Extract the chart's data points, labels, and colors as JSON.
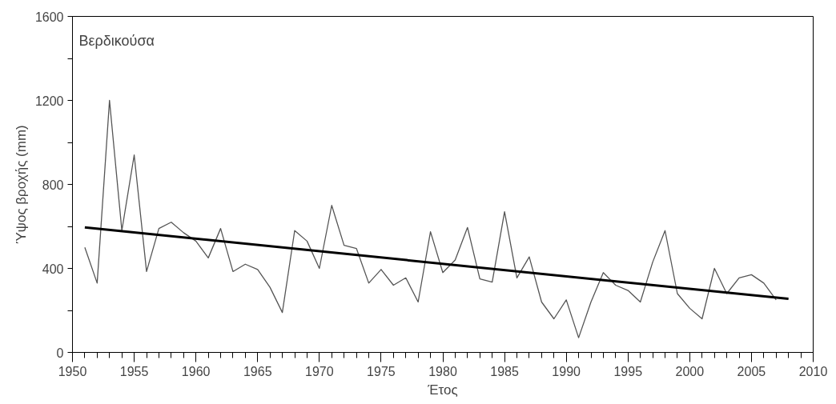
{
  "chart_data": {
    "type": "line",
    "title": "Βερδικούσα",
    "xlabel": "Έτος",
    "ylabel": "Ύψος βροχής (mm)",
    "xlim": [
      1950,
      2010
    ],
    "ylim": [
      0,
      1600
    ],
    "xticks": [
      1950,
      1955,
      1960,
      1965,
      1970,
      1975,
      1980,
      1985,
      1990,
      1995,
      2000,
      2005,
      2010
    ],
    "yticks": [
      0,
      {
        "value": 200,
        "label": null
      },
      400,
      {
        "value": 600,
        "label": null
      },
      800,
      {
        "value": 1000,
        "label": null
      },
      1200,
      {
        "value": 1400,
        "label": null
      },
      1600
    ],
    "grid": false,
    "marker": "none",
    "series": [
      {
        "color": "#555555",
        "line_style": "solid",
        "x": [
          1951,
          1952,
          1953,
          1954,
          1955,
          1956,
          1957,
          1958,
          1959,
          1960,
          1961,
          1962,
          1963,
          1964,
          1965,
          1966,
          1967,
          1968,
          1969,
          1970,
          1971,
          1972,
          1973,
          1974,
          1975,
          1976,
          1977,
          1978,
          1979,
          1980,
          1981,
          1982,
          1983,
          1984,
          1985,
          1986,
          1987,
          1988,
          1989,
          1990,
          1991,
          1992,
          1993,
          1994,
          1995,
          1996,
          1997,
          1998,
          1999,
          2000,
          2001,
          2002,
          2003,
          2004,
          2005,
          2006,
          2007
        ],
        "values": [
          500,
          330,
          1200,
          580,
          940,
          385,
          590,
          620,
          570,
          530,
          450,
          590,
          385,
          420,
          395,
          310,
          190,
          580,
          530,
          400,
          700,
          510,
          495,
          330,
          395,
          320,
          355,
          240,
          575,
          380,
          440,
          595,
          350,
          335,
          670,
          355,
          455,
          240,
          160,
          250,
          70,
          240,
          380,
          320,
          295,
          240,
          430,
          580,
          280,
          210,
          160,
          400,
          280,
          355,
          370,
          330,
          250
        ]
      },
      {
        "color": "#000000",
        "line_style": "solid",
        "x": [
          1951,
          2008
        ],
        "values": [
          595,
          255
        ]
      }
    ]
  }
}
